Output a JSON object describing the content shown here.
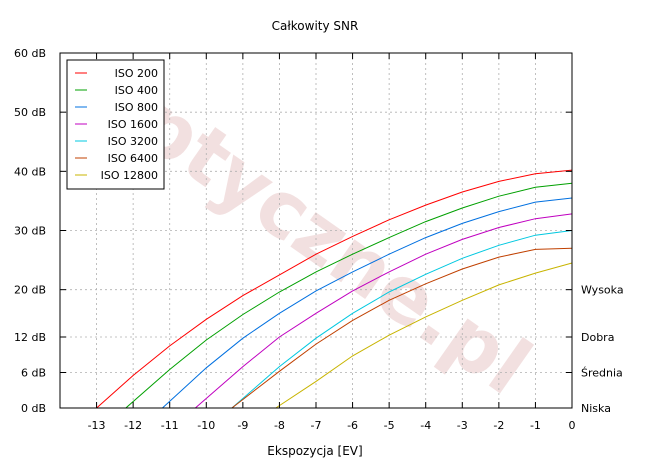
{
  "chart_data": {
    "type": "line",
    "title": "Całkowity SNR",
    "xlabel": "Ekspozycja [EV]",
    "ylabel": "",
    "xlim": [
      -14,
      0
    ],
    "ylim": [
      0,
      60
    ],
    "x_ticks": [
      -13,
      -12,
      -11,
      -10,
      -9,
      -8,
      -7,
      -6,
      -5,
      -4,
      -3,
      -2,
      -1,
      0
    ],
    "y_ticks": [
      {
        "value": 0,
        "label": "0 dB"
      },
      {
        "value": 6,
        "label": "6 dB"
      },
      {
        "value": 12,
        "label": "12 dB"
      },
      {
        "value": 20,
        "label": "20 dB"
      },
      {
        "value": 30,
        "label": "30 dB"
      },
      {
        "value": 40,
        "label": "40 dB"
      },
      {
        "value": 50,
        "label": "50 dB"
      },
      {
        "value": 60,
        "label": "60 dB"
      }
    ],
    "right_labels": [
      {
        "value": 20,
        "label": "Wysoka"
      },
      {
        "value": 12,
        "label": "Dobra"
      },
      {
        "value": 6,
        "label": "Średnia"
      },
      {
        "value": 0,
        "label": "Niska"
      }
    ],
    "grid": true,
    "legend_position": "top-left",
    "watermark": "Optyczne.pl",
    "series": [
      {
        "name": "ISO 200",
        "color": "#ff0000",
        "points": [
          [
            -13.0,
            0
          ],
          [
            -12,
            5.5
          ],
          [
            -11,
            10.5
          ],
          [
            -10,
            15
          ],
          [
            -9,
            19
          ],
          [
            -8,
            22.5
          ],
          [
            -7,
            26
          ],
          [
            -6,
            29
          ],
          [
            -5,
            31.8
          ],
          [
            -4,
            34.3
          ],
          [
            -3,
            36.5
          ],
          [
            -2,
            38.3
          ],
          [
            -1,
            39.6
          ],
          [
            0,
            40.2
          ]
        ]
      },
      {
        "name": "ISO 400",
        "color": "#00a000",
        "points": [
          [
            -12.2,
            0
          ],
          [
            -11,
            6.5
          ],
          [
            -10,
            11.5
          ],
          [
            -9,
            15.8
          ],
          [
            -8,
            19.6
          ],
          [
            -7,
            23
          ],
          [
            -6,
            26
          ],
          [
            -5,
            28.8
          ],
          [
            -4,
            31.5
          ],
          [
            -3,
            33.8
          ],
          [
            -2,
            35.8
          ],
          [
            -1,
            37.3
          ],
          [
            0,
            38
          ]
        ]
      },
      {
        "name": "ISO 800",
        "color": "#0070e0",
        "points": [
          [
            -11.2,
            0
          ],
          [
            -10,
            6.8
          ],
          [
            -9,
            11.8
          ],
          [
            -8,
            16
          ],
          [
            -7,
            19.8
          ],
          [
            -6,
            23
          ],
          [
            -5,
            26
          ],
          [
            -4,
            28.8
          ],
          [
            -3,
            31.2
          ],
          [
            -2,
            33.2
          ],
          [
            -1,
            34.8
          ],
          [
            0,
            35.5
          ]
        ]
      },
      {
        "name": "ISO 1600",
        "color": "#c000c0",
        "points": [
          [
            -10.3,
            0
          ],
          [
            -9,
            7
          ],
          [
            -8,
            12
          ],
          [
            -7,
            16
          ],
          [
            -6,
            19.8
          ],
          [
            -5,
            23
          ],
          [
            -4,
            26
          ],
          [
            -3,
            28.5
          ],
          [
            -2,
            30.5
          ],
          [
            -1,
            32
          ],
          [
            0,
            32.8
          ]
        ]
      },
      {
        "name": "ISO 3200",
        "color": "#00c8e0",
        "points": [
          [
            -9.3,
            0
          ],
          [
            -8,
            7
          ],
          [
            -7,
            11.8
          ],
          [
            -6,
            16
          ],
          [
            -5,
            19.6
          ],
          [
            -4,
            22.6
          ],
          [
            -3,
            25.3
          ],
          [
            -2,
            27.5
          ],
          [
            -1,
            29.2
          ],
          [
            0,
            30
          ]
        ]
      },
      {
        "name": "ISO 6400",
        "color": "#c04000",
        "points": [
          [
            -9.3,
            0
          ],
          [
            -8,
            6.2
          ],
          [
            -7,
            10.8
          ],
          [
            -6,
            14.8
          ],
          [
            -5,
            18.2
          ],
          [
            -4,
            21
          ],
          [
            -3,
            23.5
          ],
          [
            -2,
            25.5
          ],
          [
            -1,
            26.8
          ],
          [
            0,
            27
          ]
        ]
      },
      {
        "name": "ISO 12800",
        "color": "#c8b400",
        "points": [
          [
            -8.1,
            0
          ],
          [
            -7,
            4.5
          ],
          [
            -6,
            8.8
          ],
          [
            -5,
            12.3
          ],
          [
            -4,
            15.4
          ],
          [
            -3,
            18.2
          ],
          [
            -2,
            20.8
          ],
          [
            -1,
            22.8
          ],
          [
            0,
            24.5
          ]
        ]
      }
    ]
  }
}
